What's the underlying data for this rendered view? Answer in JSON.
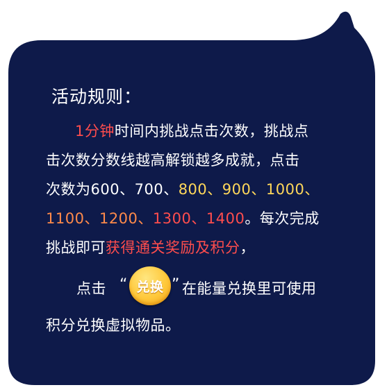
{
  "panel": {
    "background_color": "#0e1a4a",
    "title": "活动规则："
  },
  "rules": {
    "line1_highlight": "1分钟",
    "line1_rest": "时间内挑战点击次数，挑战点",
    "line2": "击次数分数线越高解锁越多成就，点击",
    "line3_prefix": "次数为",
    "line3_v600": "600",
    "sep1": "、",
    "line3_v700": "700",
    "sep2": "、",
    "line3_v800": "800",
    "sep3": "、",
    "line3_v900": "900",
    "sep4": "、",
    "line3_v1000": "1000",
    "sep5": "、",
    "line4_v1100": "1100",
    "sep6": "、",
    "line4_v1200": "1200",
    "sep7": "、",
    "line4_v1300": "1300",
    "sep8": "、",
    "line4_v1400": "1400",
    "line4_rest": "。每次完成",
    "line5_prefix": "挑战即可",
    "line5_highlight": "获得通关奖励及积分",
    "line5_suffix": "，"
  },
  "exchange": {
    "prefix": "点击",
    "quote_open": "“",
    "button_label": "兑换",
    "quote_close": "”",
    "suffix": "在能量兑换里可使用",
    "last_line": "积分兑换虚拟物品。"
  },
  "colors": {
    "highlight_red": "#ff4d4d",
    "highlight_yellow": "#ffd75a",
    "highlight_orange": "#ff8a4a",
    "button_gold": "#ffc83a"
  }
}
